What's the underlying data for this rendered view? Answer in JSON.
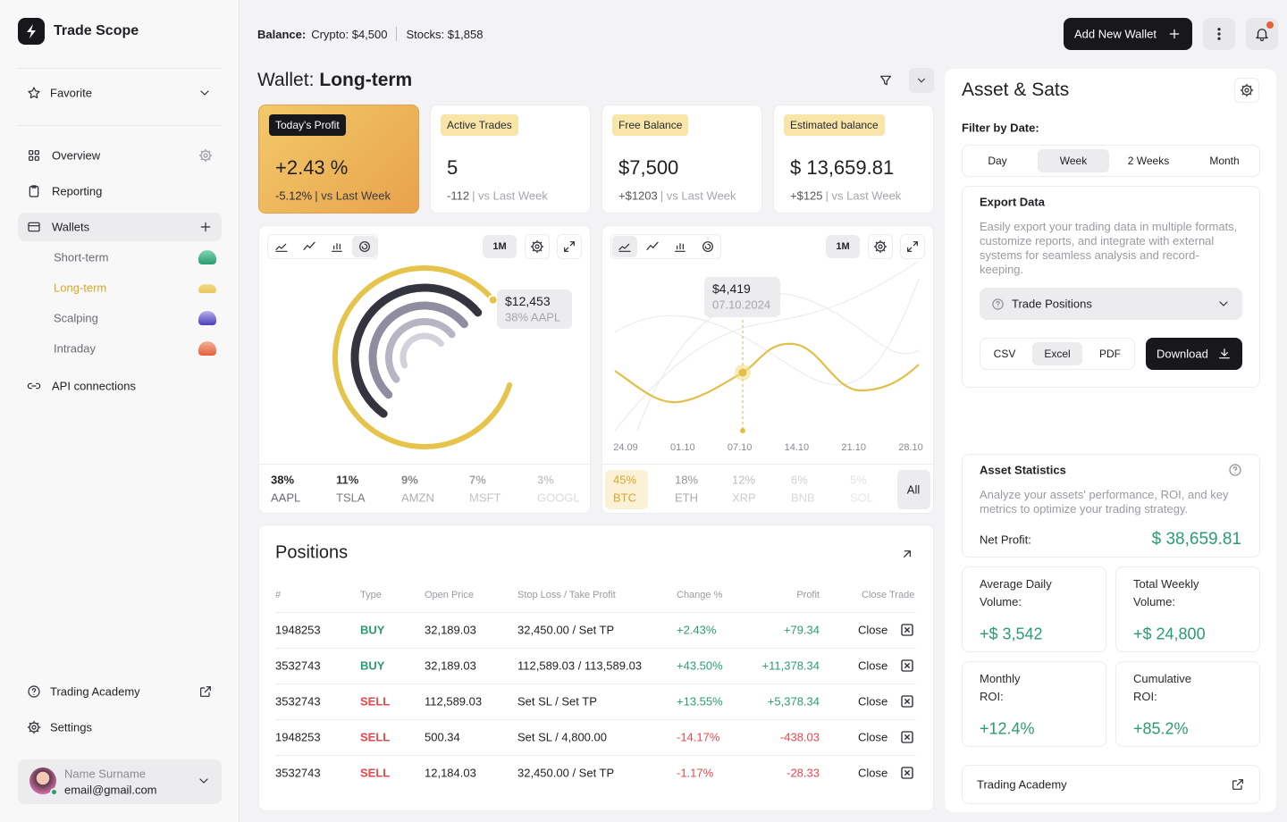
{
  "brand": "Trade Scope",
  "sidebar": {
    "favorite": "Favorite",
    "nav": [
      "Overview",
      "Reporting",
      "Wallets"
    ],
    "wallets": [
      "Short-term",
      "Long-term",
      "Scalping",
      "Intraday"
    ],
    "api": "API connections",
    "academy": "Trading Academy",
    "settings": "Settings",
    "user": {
      "name": "Name Surname",
      "email": "email@gmail.com"
    }
  },
  "header": {
    "balance_label": "Balance:",
    "crypto": "Crypto: $4,500",
    "stocks": "Stocks: $1,858",
    "add_wallet": "Add New Wallet"
  },
  "wallet": {
    "label": "Wallet:",
    "name": "Long-term"
  },
  "stats": [
    {
      "tag": "Today's Profit",
      "value": "+2.43 %",
      "change": "-5.12%",
      "note": "| vs Last Week"
    },
    {
      "tag": "Active Trades",
      "value": "5",
      "change": "-112",
      "note": "| vs Last Week"
    },
    {
      "tag": "Free Balance",
      "value": "$7,500",
      "change": "+$1203",
      "note": "| vs Last Week"
    },
    {
      "tag": "Estimated balance",
      "value": "$ 13,659.81",
      "change": "+$125",
      "note": "| vs Last Week"
    }
  ],
  "stocks_chart": {
    "period": "1M",
    "tooltip": {
      "value": "$12,453",
      "detail": "38% AAPL"
    },
    "categories": [
      "AAPL",
      "TSLA",
      "AMZN",
      "MSFT",
      "GOOGL"
    ],
    "values": [
      38,
      11,
      9,
      7,
      3
    ],
    "value_labels": [
      "38%",
      "11%",
      "9%",
      "7%",
      "3%"
    ],
    "colors": [
      "#e6c44c",
      "#34343f",
      "#8f8da0",
      "#b7b5c4",
      "#d3d1db"
    ]
  },
  "crypto_chart": {
    "period": "1M",
    "tooltip": {
      "value": "$4,419",
      "date": "07.10.2024"
    },
    "x": [
      "24.09",
      "01.10",
      "07.10",
      "14.10",
      "21.10",
      "28.10"
    ],
    "legend": [
      {
        "value": "45%",
        "name": "BTC"
      },
      {
        "value": "18%",
        "name": "ETH"
      },
      {
        "value": "12%",
        "name": "XRP"
      },
      {
        "value": "6%",
        "name": "BNB"
      },
      {
        "value": "5%",
        "name": "SOL"
      }
    ],
    "all": "All"
  },
  "positions": {
    "title": "Positions",
    "columns": [
      "#",
      "Type",
      "Open Price",
      "Stop Loss / Take Profit",
      "Change %",
      "Profit",
      "Close Trade"
    ],
    "rows": [
      [
        "1948253",
        "BUY",
        "32,189.03",
        "32,450.00 / Set TP",
        "+2.43%",
        "+79.34",
        "Close"
      ],
      [
        "3532743",
        "BUY",
        "32,189.03",
        "112,589.03 / 113,589.03",
        "+43.50%",
        "+11,378.34",
        "Close"
      ],
      [
        "3532743",
        "SELL",
        "112,589.03",
        "Set SL / Set TP",
        "+13.55%",
        "+5,378.34",
        "Close"
      ],
      [
        "1948253",
        "SELL",
        "500.34",
        "Set SL / 4,800.00",
        "-14.17%",
        "-438.03",
        "Close"
      ],
      [
        "3532743",
        "SELL",
        "12,184.03",
        "32,450.00 / Set TP",
        "-1.17%",
        "-28.33",
        "Close"
      ]
    ]
  },
  "panel": {
    "title": "Asset & Sats",
    "filter_label": "Filter by Date:",
    "filters": [
      "Day",
      "Week",
      "2 Weeks",
      "Month"
    ],
    "export": {
      "title": "Export Data",
      "text": "Easily export your trading data in multiple formats, customize reports, and integrate with external systems for seamless analysis and record-keeping.",
      "select": "Trade Positions",
      "formats": [
        "CSV",
        "Excel",
        "PDF"
      ],
      "download": "Download"
    },
    "statistics": {
      "title": "Asset Statistics",
      "text": "Analyze your assets' performance, ROI, and key metrics to optimize your trading strategy.",
      "net_label": "Net Profit:",
      "net_value": "$ 38,659.81"
    },
    "tiles": [
      {
        "label": "Average Daily Volume:",
        "value": "+$ 3,542"
      },
      {
        "label": "Total Weekly Volume:",
        "value": "+$ 24,800"
      },
      {
        "label": "Monthly ROI:",
        "value": "+12.4%"
      },
      {
        "label": "Cumulative ROI:",
        "value": "+85.2%"
      }
    ],
    "academy": "Trading Academy"
  }
}
